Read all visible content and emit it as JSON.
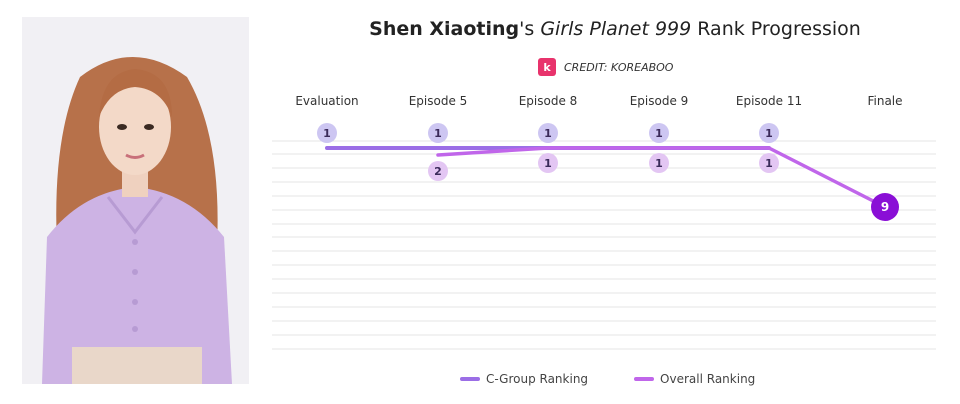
{
  "title": {
    "name": "Shen Xiaoting",
    "possessive": "'s ",
    "show": "Girls Planet 999",
    "suffix": " Rank Progression"
  },
  "credit": {
    "logo_text": "k",
    "text": "CREDIT: KOREABOO"
  },
  "colors": {
    "c_group": "#9b6ee6",
    "overall": "#c066ea",
    "finale": "#8a0fd6",
    "grid": "#e6e6e6"
  },
  "chart_data": {
    "type": "line",
    "categories": [
      "Evaluation",
      "Episode 5",
      "Episode 8",
      "Episode 9",
      "Episode 11",
      "Finale"
    ],
    "y_inverted": true,
    "grid": true,
    "legend_position": "bottom-center",
    "series": [
      {
        "name": "C-Group Ranking",
        "values": [
          1,
          1,
          1,
          1,
          1,
          null
        ]
      },
      {
        "name": "Overall Ranking",
        "values": [
          null,
          2,
          1,
          1,
          1,
          9
        ]
      }
    ]
  }
}
